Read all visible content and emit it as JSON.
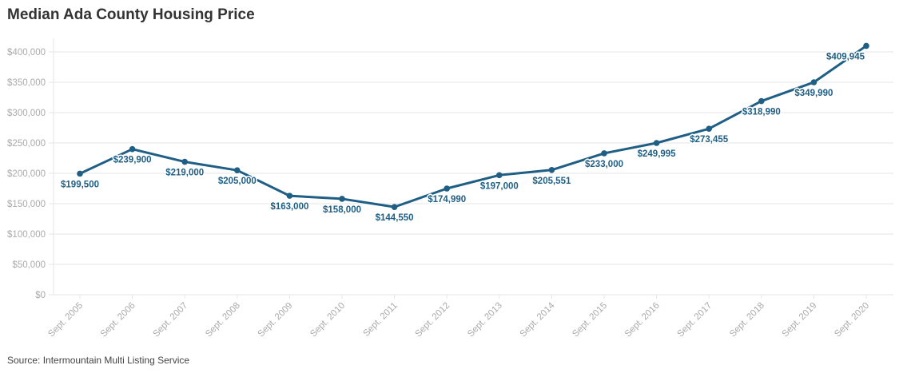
{
  "chart_data": {
    "type": "line",
    "title": "Median Ada County Housing Price",
    "source": "Source: Intermountain Multi Listing Service",
    "xlabel": "",
    "ylabel": "",
    "categories": [
      "Sept. 2005",
      "Sept. 2006",
      "Sept. 2007",
      "Sept. 2008",
      "Sept. 2009",
      "Sept. 2010",
      "Sept. 2011",
      "Sept. 2012",
      "Sept. 2013",
      "Sept. 2014",
      "Sept. 2015",
      "Sept. 2016",
      "Sept. 2017",
      "Sept. 2018",
      "Sept. 2019",
      "Sept. 2020"
    ],
    "values": [
      199500,
      239900,
      219000,
      205000,
      163000,
      158000,
      144550,
      174990,
      197000,
      205551,
      233000,
      249995,
      273455,
      318990,
      349990,
      409945
    ],
    "data_labels": [
      "$199,500",
      "$239,900",
      "$219,000",
      "$205,000",
      "$163,000",
      "$158,000",
      "$144,550",
      "$174,990",
      "$197,000",
      "$205,551",
      "$233,000",
      "$249,995",
      "$273,455",
      "$318,990",
      "$349,990",
      "$409,945"
    ],
    "ylim": [
      0,
      400000
    ],
    "yticks": [
      0,
      50000,
      100000,
      150000,
      200000,
      250000,
      300000,
      350000,
      400000
    ],
    "ytick_labels": [
      "$0",
      "$50,000",
      "$100,000",
      "$150,000",
      "$200,000",
      "$250,000",
      "$300,000",
      "$350,000",
      "$400,000"
    ],
    "grid": true,
    "line_color": "#1f5f85"
  }
}
